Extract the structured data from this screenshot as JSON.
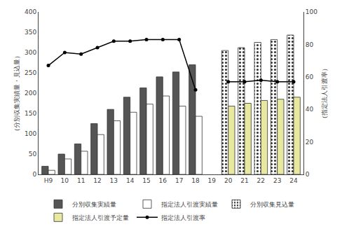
{
  "chart_data": {
    "type": "bar",
    "categories": [
      "H9",
      "10",
      "11",
      "12",
      "13",
      "14",
      "15",
      "16",
      "17",
      "18",
      "19",
      "20",
      "21",
      "22",
      "23",
      "24"
    ],
    "series": [
      {
        "name": "分別収集実績量",
        "type": "bar",
        "color": "#555555",
        "values": [
          20,
          50,
          75,
          125,
          160,
          190,
          213,
          240,
          252,
          270,
          null,
          null,
          null,
          null,
          null,
          null
        ]
      },
      {
        "name": "指定法人引渡実績量",
        "type": "bar",
        "color": "#ffffff",
        "values": [
          10,
          38,
          57,
          98,
          132,
          153,
          173,
          193,
          168,
          143,
          null,
          null,
          null,
          null,
          null,
          null
        ]
      },
      {
        "name": "分別収集見込量",
        "type": "bar",
        "color": "#ffffff",
        "marker": "dots",
        "values": [
          null,
          null,
          null,
          null,
          null,
          null,
          null,
          null,
          null,
          null,
          null,
          305,
          312,
          325,
          332,
          343
        ]
      },
      {
        "name": "指定法人引渡予定量",
        "type": "bar",
        "color": "#e8e8a0",
        "values": [
          null,
          null,
          null,
          null,
          null,
          null,
          null,
          null,
          null,
          null,
          null,
          168,
          175,
          182,
          185,
          190
        ]
      },
      {
        "name": "指定法人引渡率",
        "type": "line",
        "axis": "y2",
        "color": "#000000",
        "marker": "circle",
        "values": [
          67,
          75,
          74,
          78,
          82,
          82,
          83,
          83,
          83,
          52,
          null,
          57,
          57,
          58,
          57,
          57
        ]
      }
    ],
    "ylabel": "（分別収集実績量・見込量）",
    "y2label": "（指定法人引渡率）",
    "ylim": [
      0,
      400
    ],
    "yticks": [
      0,
      50,
      100,
      150,
      200,
      250,
      300,
      350,
      400
    ],
    "y2lim": [
      0,
      100
    ],
    "y2ticks": [
      0,
      20,
      40,
      60,
      80,
      100
    ],
    "grid": false,
    "legend": "bottom"
  }
}
